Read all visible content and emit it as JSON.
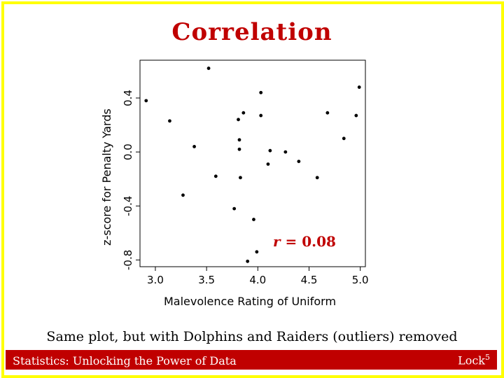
{
  "slide": {
    "title": "Correlation",
    "caption": "Same plot, but with Dolphins and Raiders (outliers) removed",
    "footer_left": "Statistics: Unlocking the Power of Data",
    "footer_right": "Lock",
    "footer_right_sup": "5",
    "annotation_var": "r",
    "annotation_value": " = 0.08"
  },
  "colors": {
    "frame": "#ffff00",
    "title": "#c00000",
    "footer_bg": "#c00000",
    "points": "#000000"
  },
  "chart_data": {
    "type": "scatter",
    "title": "",
    "xlabel": "Malevolence Rating of Uniform",
    "ylabel": "z-score for Penalty Yards",
    "xlim": [
      2.85,
      5.05
    ],
    "ylim": [
      -0.85,
      0.68
    ],
    "xticks": [
      3.0,
      3.5,
      4.0,
      4.5,
      5.0
    ],
    "xtick_labels": [
      "3.0",
      "3.5",
      "4.0",
      "4.5",
      "5.0"
    ],
    "yticks": [
      -0.8,
      -0.4,
      0.0,
      0.4
    ],
    "ytick_labels": [
      "-0.8",
      "-0.4",
      "0.0",
      "0.4"
    ],
    "grid": false,
    "points": [
      {
        "x": 2.91,
        "y": 0.38
      },
      {
        "x": 3.14,
        "y": 0.23
      },
      {
        "x": 3.27,
        "y": -0.32
      },
      {
        "x": 3.38,
        "y": 0.04
      },
      {
        "x": 3.52,
        "y": 0.62
      },
      {
        "x": 3.59,
        "y": -0.18
      },
      {
        "x": 3.77,
        "y": -0.42
      },
      {
        "x": 3.81,
        "y": 0.24
      },
      {
        "x": 3.82,
        "y": 0.09
      },
      {
        "x": 3.82,
        "y": 0.02
      },
      {
        "x": 3.83,
        "y": -0.19
      },
      {
        "x": 3.86,
        "y": 0.29
      },
      {
        "x": 3.9,
        "y": -0.81
      },
      {
        "x": 3.96,
        "y": -0.5
      },
      {
        "x": 3.99,
        "y": -0.74
      },
      {
        "x": 4.03,
        "y": 0.44
      },
      {
        "x": 4.03,
        "y": 0.27
      },
      {
        "x": 4.1,
        "y": -0.09
      },
      {
        "x": 4.12,
        "y": 0.01
      },
      {
        "x": 4.27,
        "y": 0.0
      },
      {
        "x": 4.4,
        "y": -0.07
      },
      {
        "x": 4.58,
        "y": -0.19
      },
      {
        "x": 4.68,
        "y": 0.29
      },
      {
        "x": 4.84,
        "y": 0.1
      },
      {
        "x": 4.96,
        "y": 0.27
      },
      {
        "x": 4.99,
        "y": 0.48
      }
    ]
  }
}
